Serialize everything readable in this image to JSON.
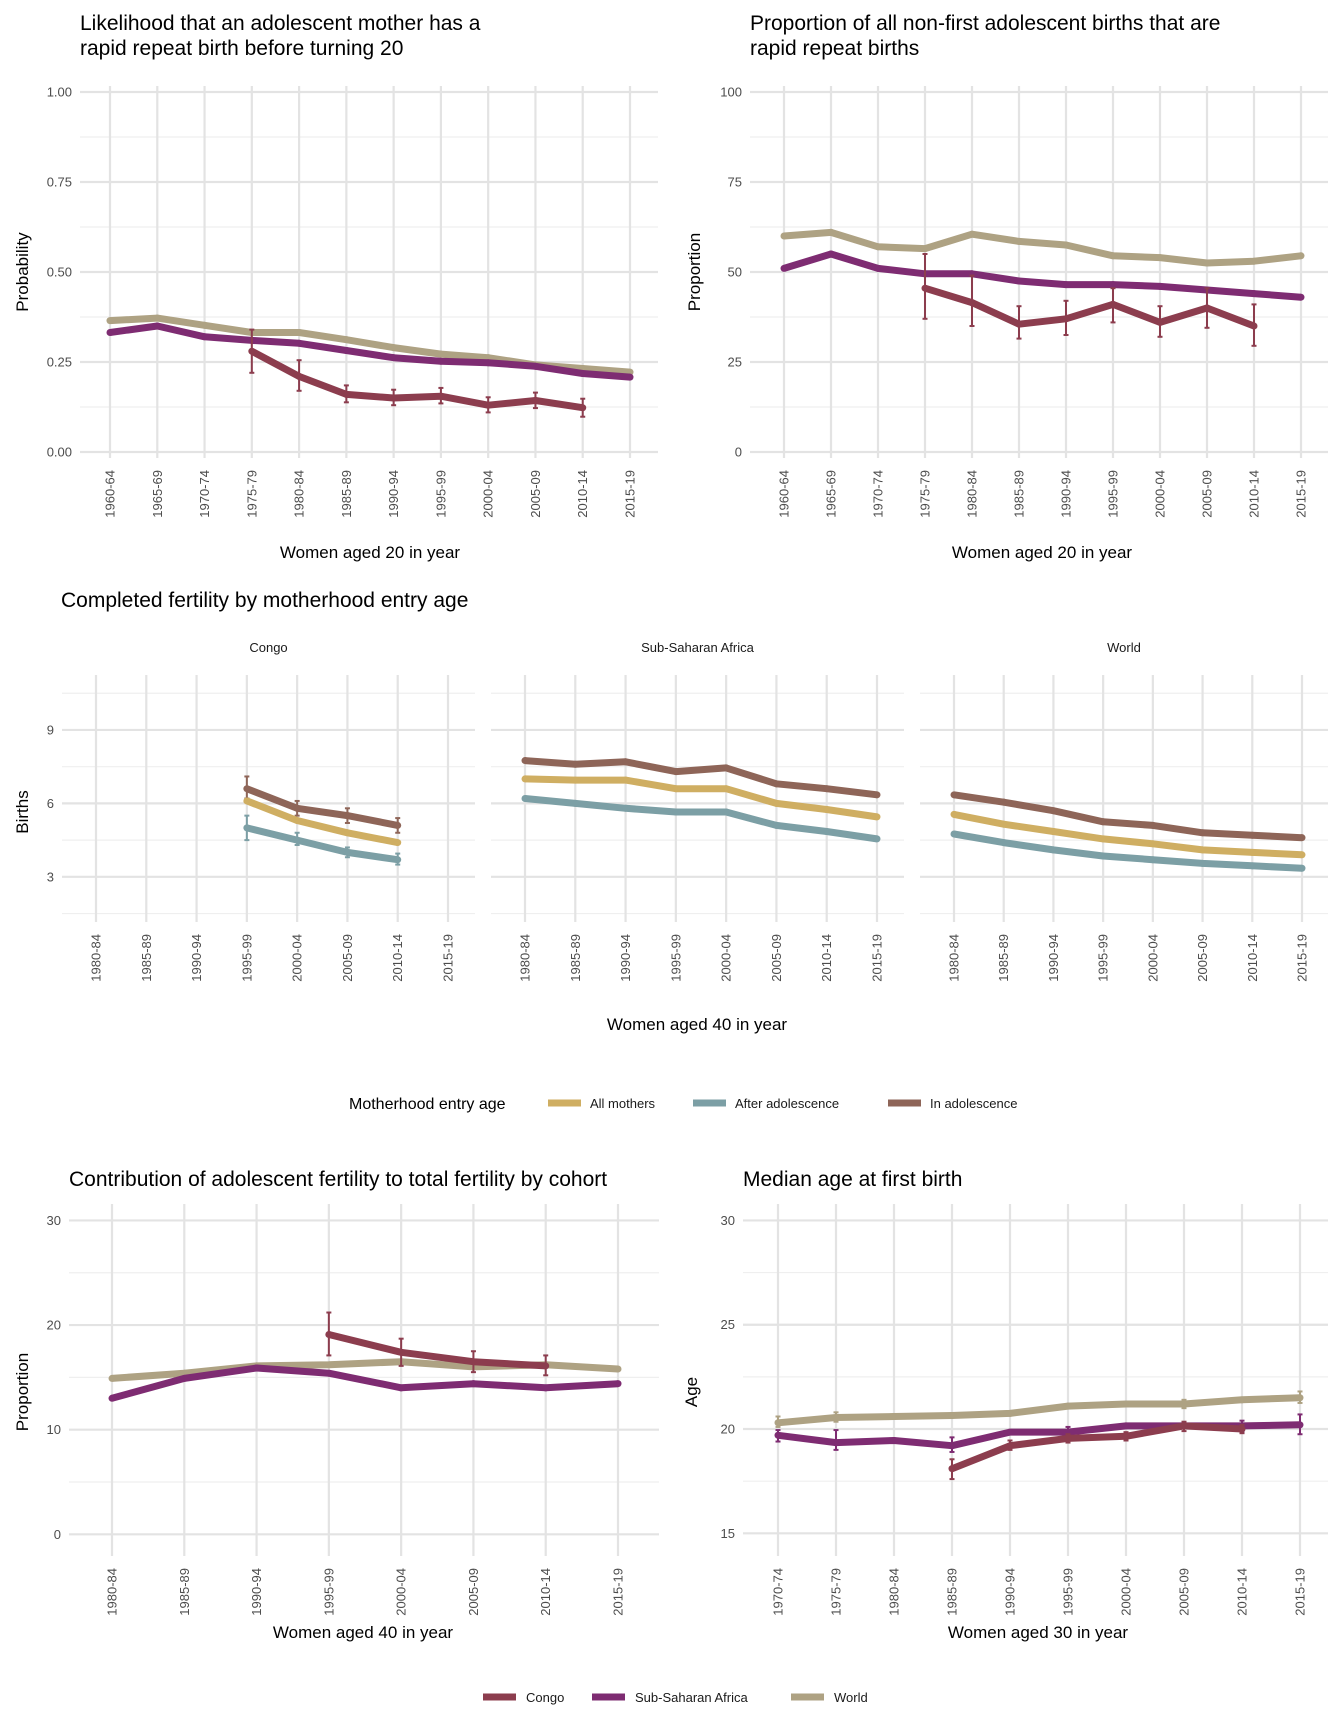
{
  "colors": {
    "Congo": "#8c3d4e",
    "Sub-Saharan Africa": "#7e2c72",
    "World": "#aea283",
    "All mothers": "#cfae62",
    "After adolescence": "#7c9fa5",
    "In adolescence": "#8e6558"
  },
  "chart_data": [
    {
      "id": "rapid-repeat-probability",
      "type": "line",
      "title_lines": [
        "Likelihood that an adolescent mother has a",
        "rapid repeat birth before turning 20"
      ],
      "xlabel": "Women aged 20 in year",
      "ylabel": "Probability",
      "categories": [
        "1960-64",
        "1965-69",
        "1970-74",
        "1975-79",
        "1980-84",
        "1985-89",
        "1990-94",
        "1995-99",
        "2000-04",
        "2005-09",
        "2010-14",
        "2015-19"
      ],
      "ylim": [
        0,
        1
      ],
      "yticks": [
        0,
        0.25,
        0.5,
        0.75,
        1
      ],
      "ytick_labels": [
        "0.00",
        "0.25",
        "0.50",
        "0.75",
        "1.00"
      ],
      "grid": true,
      "series": [
        {
          "name": "World",
          "values": [
            0.365,
            0.372,
            0.352,
            0.332,
            0.332,
            0.312,
            0.29,
            0.272,
            0.262,
            0.242,
            0.232,
            0.222
          ]
        },
        {
          "name": "Sub-Saharan Africa",
          "values": [
            0.332,
            0.35,
            0.32,
            0.31,
            0.302,
            0.282,
            0.262,
            0.252,
            0.248,
            0.238,
            0.218,
            0.208
          ]
        },
        {
          "name": "Congo",
          "values": [
            null,
            null,
            null,
            0.28,
            0.21,
            0.16,
            0.15,
            0.155,
            0.13,
            0.143,
            0.123,
            null
          ],
          "lower": [
            null,
            null,
            null,
            0.22,
            0.17,
            0.138,
            0.13,
            0.135,
            0.11,
            0.122,
            0.098,
            null
          ],
          "upper": [
            null,
            null,
            null,
            0.34,
            0.255,
            0.185,
            0.173,
            0.178,
            0.152,
            0.165,
            0.148,
            null
          ]
        }
      ]
    },
    {
      "id": "rapid-repeat-proportion",
      "type": "line",
      "title_lines": [
        "Proportion of all non-first adolescent births that are",
        "rapid repeat births"
      ],
      "xlabel": "Women aged 20 in year",
      "ylabel": "Proportion",
      "categories": [
        "1960-64",
        "1965-69",
        "1970-74",
        "1975-79",
        "1980-84",
        "1985-89",
        "1990-94",
        "1995-99",
        "2000-04",
        "2005-09",
        "2010-14",
        "2015-19"
      ],
      "ylim": [
        0,
        100
      ],
      "yticks": [
        0,
        25,
        50,
        75,
        100
      ],
      "ytick_labels": [
        "0",
        "25",
        "50",
        "75",
        "100"
      ],
      "grid": true,
      "series": [
        {
          "name": "World",
          "values": [
            60,
            61,
            57,
            56.5,
            60.5,
            58.5,
            57.5,
            54.5,
            54,
            52.5,
            53,
            54.5
          ]
        },
        {
          "name": "Sub-Saharan Africa",
          "values": [
            51,
            55,
            51,
            49.5,
            49.5,
            47.5,
            46.5,
            46.5,
            46,
            45,
            44,
            43
          ]
        },
        {
          "name": "Congo",
          "values": [
            null,
            null,
            null,
            45.5,
            41.5,
            35.5,
            37,
            41,
            36,
            40,
            35,
            null
          ],
          "lower": [
            null,
            null,
            null,
            37,
            35,
            31.5,
            32.5,
            36,
            32,
            34.5,
            29.5,
            null
          ],
          "upper": [
            null,
            null,
            null,
            55,
            49,
            40.5,
            42,
            45.5,
            40.5,
            45.5,
            41,
            null
          ]
        }
      ]
    },
    {
      "id": "completed-fertility",
      "type": "line",
      "title": "Completed fertility by motherhood entry age",
      "xlabel": "Women aged 40 in year",
      "ylabel": "Births",
      "categories": [
        "1980-84",
        "1985-89",
        "1990-94",
        "1995-99",
        "2000-04",
        "2005-09",
        "2010-14",
        "2015-19"
      ],
      "ylim": [
        1.4,
        11
      ],
      "yticks": [
        3,
        6,
        9
      ],
      "ytick_labels": [
        "3",
        "6",
        "9"
      ],
      "grid": true,
      "facets": [
        {
          "name": "Congo",
          "series": [
            {
              "name": "In adolescence",
              "values": [
                null,
                null,
                null,
                6.6,
                5.8,
                5.5,
                5.1,
                null
              ],
              "lower": [
                null,
                null,
                null,
                6.2,
                5.5,
                5.2,
                4.8,
                null
              ],
              "upper": [
                null,
                null,
                null,
                7.1,
                6.1,
                5.8,
                5.4,
                null
              ]
            },
            {
              "name": "All mothers",
              "values": [
                null,
                null,
                null,
                6.1,
                5.3,
                4.8,
                4.4,
                null
              ]
            },
            {
              "name": "After adolescence",
              "values": [
                null,
                null,
                null,
                5.0,
                4.5,
                4.0,
                3.7,
                null
              ],
              "lower": [
                null,
                null,
                null,
                4.5,
                4.3,
                3.8,
                3.5,
                null
              ],
              "upper": [
                null,
                null,
                null,
                5.5,
                4.8,
                4.2,
                3.95,
                null
              ]
            }
          ]
        },
        {
          "name": "Sub-Saharan Africa",
          "series": [
            {
              "name": "In adolescence",
              "values": [
                7.75,
                7.6,
                7.7,
                7.3,
                7.45,
                6.8,
                6.6,
                6.35
              ]
            },
            {
              "name": "All mothers",
              "values": [
                7.0,
                6.95,
                6.95,
                6.6,
                6.6,
                6.0,
                5.75,
                5.45
              ]
            },
            {
              "name": "After adolescence",
              "values": [
                6.2,
                6.0,
                5.8,
                5.65,
                5.65,
                5.1,
                4.85,
                4.55
              ]
            }
          ]
        },
        {
          "name": "World",
          "series": [
            {
              "name": "In adolescence",
              "values": [
                6.35,
                6.05,
                5.7,
                5.25,
                5.1,
                4.8,
                4.7,
                4.6
              ]
            },
            {
              "name": "All mothers",
              "values": [
                5.55,
                5.15,
                4.85,
                4.55,
                4.35,
                4.1,
                4.0,
                3.9
              ]
            },
            {
              "name": "After adolescence",
              "values": [
                4.75,
                4.4,
                4.1,
                3.85,
                3.7,
                3.55,
                3.45,
                3.35
              ]
            }
          ]
        }
      ],
      "legend": {
        "title": "Motherhood entry age",
        "placement": "bottom",
        "entries": [
          "All mothers",
          "After adolescence",
          "In adolescence"
        ]
      }
    },
    {
      "id": "adolescent-contribution",
      "type": "line",
      "title": "Contribution of adolescent fertility to total fertility by cohort",
      "xlabel": "Women aged 40 in year",
      "ylabel": "Proportion",
      "categories": [
        "1980-84",
        "1985-89",
        "1990-94",
        "1995-99",
        "2000-04",
        "2005-09",
        "2010-14",
        "2015-19"
      ],
      "ylim": [
        -1.5,
        31
      ],
      "yticks": [
        0,
        10,
        20,
        30
      ],
      "ytick_labels": [
        "0",
        "10",
        "20",
        "30"
      ],
      "grid": true,
      "series": [
        {
          "name": "World",
          "values": [
            14.9,
            15.4,
            16.1,
            16.2,
            16.5,
            16.0,
            16.2,
            15.8
          ]
        },
        {
          "name": "Sub-Saharan Africa",
          "values": [
            13.0,
            14.9,
            15.9,
            15.4,
            14.0,
            14.4,
            14.0,
            14.4
          ]
        },
        {
          "name": "Congo",
          "values": [
            null,
            null,
            null,
            19.1,
            17.4,
            16.5,
            16.1,
            null
          ],
          "lower": [
            null,
            null,
            null,
            17.1,
            16.1,
            15.5,
            15.2,
            null
          ],
          "upper": [
            null,
            null,
            null,
            21.2,
            18.7,
            17.5,
            17.1,
            null
          ]
        }
      ]
    },
    {
      "id": "median-age-first-birth",
      "type": "line",
      "title": "Median age at first birth",
      "xlabel": "Women aged 30 in year",
      "ylabel": "Age",
      "categories": [
        "1970-74",
        "1975-79",
        "1980-84",
        "1985-89",
        "1990-94",
        "1995-99",
        "2000-04",
        "2005-09",
        "2010-14",
        "2015-19"
      ],
      "ylim": [
        14.2,
        30.5
      ],
      "yticks": [
        15,
        20,
        25,
        30
      ],
      "ytick_labels": [
        "15",
        "20",
        "25",
        "30"
      ],
      "grid": true,
      "series": [
        {
          "name": "World",
          "values": [
            20.3,
            20.55,
            20.6,
            20.65,
            20.75,
            21.1,
            21.2,
            21.2,
            21.4,
            21.5
          ],
          "lower": [
            20.1,
            20.35,
            null,
            null,
            null,
            null,
            null,
            21.0,
            null,
            21.25
          ],
          "upper": [
            20.6,
            20.8,
            null,
            null,
            null,
            null,
            null,
            21.4,
            null,
            21.8
          ]
        },
        {
          "name": "Sub-Saharan Africa",
          "values": [
            19.7,
            19.35,
            19.45,
            19.2,
            19.85,
            19.85,
            20.15,
            20.15,
            20.15,
            20.2
          ],
          "lower": [
            19.4,
            19.0,
            null,
            18.9,
            null,
            19.6,
            null,
            null,
            19.85,
            19.75
          ],
          "upper": [
            19.95,
            19.95,
            null,
            19.6,
            null,
            20.1,
            null,
            null,
            20.4,
            20.7
          ]
        },
        {
          "name": "Congo",
          "values": [
            null,
            null,
            null,
            18.1,
            19.2,
            19.55,
            19.65,
            20.15,
            20.0,
            null
          ],
          "lower": [
            null,
            null,
            null,
            17.6,
            19.0,
            19.35,
            19.45,
            19.9,
            19.8,
            null
          ],
          "upper": [
            null,
            null,
            null,
            18.55,
            19.45,
            19.75,
            19.85,
            20.35,
            20.2,
            null
          ]
        }
      ]
    }
  ],
  "legend_regions": {
    "placement": "bottom",
    "entries": [
      "Congo",
      "Sub-Saharan Africa",
      "World"
    ]
  }
}
